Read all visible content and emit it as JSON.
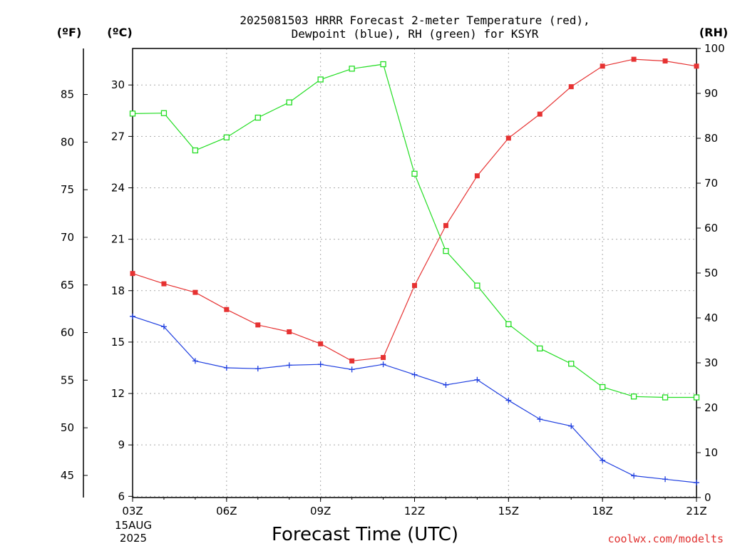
{
  "chart_data": {
    "type": "line",
    "title_line1": "2025081503 HRRR Forecast 2-meter Temperature (red),",
    "title_line2": "Dewpoint (blue), RH (green) for KSYR",
    "xlabel": "Forecast Time (UTC)",
    "credit": "coolwx.com/modelts",
    "date_label_day": "15AUG",
    "date_label_year": "2025",
    "unit_left_f": "(ºF)",
    "unit_left_c": "(ºC)",
    "unit_right": "(RH)",
    "x": [
      3,
      4,
      5,
      6,
      7,
      8,
      9,
      10,
      11,
      12,
      13,
      14,
      15,
      16,
      17,
      18,
      19,
      20,
      21
    ],
    "xlim": [
      3,
      21
    ],
    "x_ticks": [
      {
        "value": 3,
        "label": "03Z"
      },
      {
        "value": 6,
        "label": "06Z"
      },
      {
        "value": 9,
        "label": "09Z"
      },
      {
        "value": 12,
        "label": "12Z"
      },
      {
        "value": 15,
        "label": "15Z"
      },
      {
        "value": 18,
        "label": "18Z"
      },
      {
        "value": 21,
        "label": "21Z"
      }
    ],
    "ylim_c": [
      5.93,
      32.13
    ],
    "y_c_ticks": [
      "6",
      "9",
      "12",
      "15",
      "18",
      "21",
      "24",
      "27",
      "30"
    ],
    "y_f_ticks": [
      "45",
      "50",
      "55",
      "60",
      "65",
      "70",
      "75",
      "80",
      "85"
    ],
    "ylim_rh": [
      0,
      100
    ],
    "y_rh_ticks": [
      "0",
      "10",
      "20",
      "30",
      "40",
      "50",
      "60",
      "70",
      "80",
      "90",
      "100"
    ],
    "grid": true,
    "colors": {
      "temperature": "#e63232",
      "dewpoint": "#1f3fe0",
      "rh": "#22dd22",
      "grid": "#aaaaaa"
    },
    "series": [
      {
        "name": "Temperature",
        "axis": "c",
        "marker": "filled-square",
        "values": [
          19.0,
          18.4,
          17.9,
          16.9,
          16.0,
          15.6,
          14.9,
          13.9,
          14.1,
          18.3,
          21.8,
          24.7,
          26.9,
          28.3,
          29.9,
          31.1,
          31.5,
          31.4,
          31.1
        ]
      },
      {
        "name": "Dewpoint",
        "axis": "c",
        "marker": "plus",
        "values": [
          16.5,
          15.9,
          13.9,
          13.5,
          13.45,
          13.65,
          13.7,
          13.4,
          13.7,
          13.1,
          12.5,
          12.8,
          11.6,
          10.5,
          10.1,
          8.1,
          7.2,
          7.0,
          6.8
        ]
      },
      {
        "name": "RH",
        "axis": "rh",
        "marker": "hollow-square",
        "values": [
          85.5,
          85.6,
          77.3,
          80.2,
          84.6,
          88.0,
          93.1,
          95.5,
          96.5,
          72.1,
          54.9,
          47.2,
          38.6,
          33.2,
          29.8,
          24.6,
          22.5,
          22.3,
          22.3
        ]
      }
    ]
  }
}
